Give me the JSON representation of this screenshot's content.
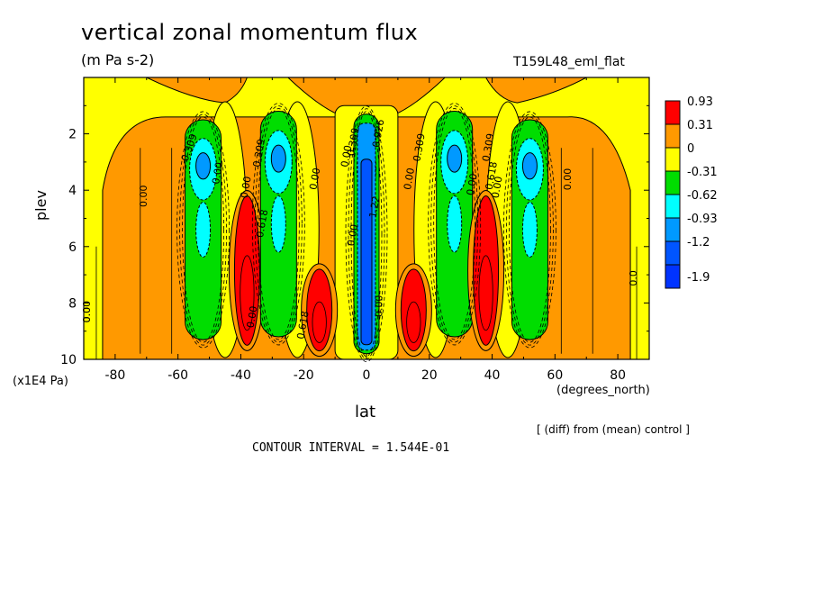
{
  "chart_data": {
    "type": "contour",
    "title": "vertical zonal momentum flux",
    "units": "(m Pa s-2)",
    "run_label": "T159L48_eml_flat",
    "xlabel": "lat",
    "x_unit": "(degrees_north)",
    "ylabel": "plev",
    "y_unit": "(x1E4 Pa)",
    "diff_note": "[ (diff) from (mean) control ]",
    "contour_interval": "CONTOUR INTERVAL = 1.544E-01",
    "xlim": [
      -90,
      90
    ],
    "ylim": [
      10,
      0
    ],
    "x_ticks": [
      -80,
      -60,
      -40,
      -20,
      0,
      20,
      40,
      60,
      80
    ],
    "y_ticks": [
      2,
      4,
      6,
      8,
      10
    ],
    "colorbar": {
      "labels": [
        "0.93",
        "0.31",
        "0",
        "-0.31",
        "-0.62",
        "-0.93",
        "-1.2",
        "-1.9"
      ],
      "colors": [
        "#ff0000",
        "#ff9900",
        "#ffff00",
        "#00dd00",
        "#00ffff",
        "#0099ff",
        "#0055ff",
        "#0033ff"
      ]
    },
    "contour_labels": [
      "0.309",
      "0.309",
      "0.309",
      "0.309",
      "0.309",
      "0.00",
      "0.00",
      "0.00",
      "0.00",
      "0.00",
      "0.00",
      "0.00",
      "0.00",
      "0.00",
      "0.00",
      "0.00",
      "0.00",
      "0.00",
      "0.618",
      "0.618",
      "0.0",
      "0.0",
      "1.22",
      "0.926",
      "0.618"
    ],
    "features": [
      {
        "kind": "negative",
        "lat": -52,
        "plev_top": 1.5,
        "plev_bottom": 9.3,
        "min": -0.93
      },
      {
        "kind": "positive",
        "lat": -38,
        "plev_top": 4.2,
        "plev_bottom": 9.5,
        "max": 0.93
      },
      {
        "kind": "negative",
        "lat": -28,
        "plev_top": 1.2,
        "plev_bottom": 9.2,
        "min": -0.93
      },
      {
        "kind": "positive",
        "lat": -15,
        "plev_top": 6.8,
        "plev_bottom": 9.7,
        "max": 0.93
      },
      {
        "kind": "negative",
        "lat": 0,
        "plev_top": 1.3,
        "plev_bottom": 9.8,
        "min": -1.9
      },
      {
        "kind": "positive",
        "lat": 15,
        "plev_top": 6.8,
        "plev_bottom": 9.7,
        "max": 0.93
      },
      {
        "kind": "negative",
        "lat": 28,
        "plev_top": 1.2,
        "plev_bottom": 9.2,
        "min": -0.93
      },
      {
        "kind": "positive",
        "lat": 38,
        "plev_top": 4.2,
        "plev_bottom": 9.5,
        "max": 0.93
      },
      {
        "kind": "negative",
        "lat": 52,
        "plev_top": 1.5,
        "plev_bottom": 9.3,
        "min": -0.93
      }
    ]
  }
}
